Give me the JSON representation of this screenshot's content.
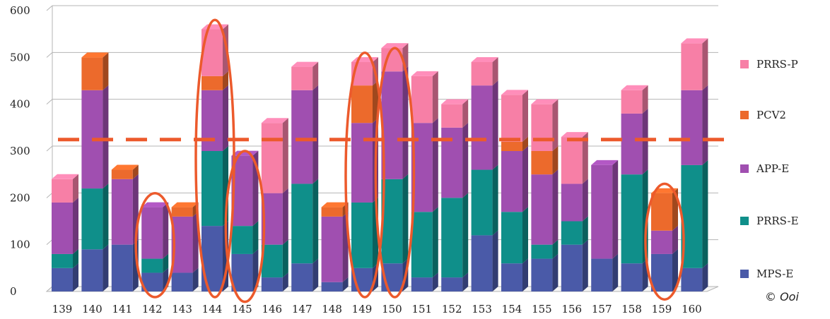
{
  "chart_data": {
    "type": "bar",
    "stacked": true,
    "grid": true,
    "legend_position": "right",
    "ylim": [
      0,
      600
    ],
    "yticks": [
      0,
      100,
      200,
      300,
      400,
      500,
      600
    ],
    "categories": [
      "139",
      "140",
      "141",
      "142",
      "143",
      "144",
      "145",
      "146",
      "147",
      "148",
      "149",
      "150",
      "151",
      "152",
      "153",
      "154",
      "155",
      "156",
      "157",
      "158",
      "159",
      "160"
    ],
    "series": [
      {
        "name": "MPS-E",
        "color": "#4a5aa8",
        "values": [
          50,
          90,
          100,
          40,
          40,
          140,
          80,
          30,
          60,
          20,
          50,
          60,
          30,
          30,
          120,
          60,
          70,
          100,
          70,
          60,
          80,
          50
        ]
      },
      {
        "name": "PRRS-E",
        "color": "#0f8f8a",
        "values": [
          30,
          130,
          0,
          30,
          0,
          160,
          60,
          70,
          170,
          0,
          140,
          180,
          140,
          170,
          140,
          110,
          30,
          50,
          0,
          190,
          0,
          220
        ]
      },
      {
        "name": "APP-E",
        "color": "#a04fb0",
        "values": [
          110,
          210,
          140,
          110,
          120,
          130,
          150,
          110,
          200,
          140,
          170,
          230,
          190,
          150,
          180,
          130,
          150,
          80,
          200,
          130,
          50,
          160
        ]
      },
      {
        "name": "PCV2",
        "color": "#ec6a2c",
        "values": [
          0,
          70,
          20,
          0,
          20,
          30,
          0,
          0,
          0,
          20,
          80,
          0,
          0,
          0,
          0,
          20,
          50,
          0,
          0,
          0,
          80,
          0
        ]
      },
      {
        "name": "PRRS-P",
        "color": "#f77fa6",
        "values": [
          50,
          0,
          0,
          0,
          0,
          100,
          0,
          150,
          50,
          0,
          50,
          50,
          100,
          50,
          50,
          100,
          100,
          100,
          0,
          50,
          0,
          100
        ]
      }
    ],
    "reference_line": {
      "value": 320,
      "color": "#ec5a2c",
      "style": "dashed"
    },
    "highlight_ellipses": [
      {
        "categories": [
          "142"
        ],
        "range": [
          0,
          210
        ]
      },
      {
        "categories": [
          "144"
        ],
        "range": [
          0,
          580
        ]
      },
      {
        "categories": [
          "145"
        ],
        "range": [
          -10,
          300
        ]
      },
      {
        "categories": [
          "149"
        ],
        "range": [
          0,
          510
        ]
      },
      {
        "categories": [
          "150"
        ],
        "range": [
          0,
          520
        ]
      },
      {
        "categories": [
          "159"
        ],
        "range": [
          -5,
          230
        ]
      }
    ],
    "annotation_color": "#ec5a2c"
  },
  "copyright": "© Ooi"
}
